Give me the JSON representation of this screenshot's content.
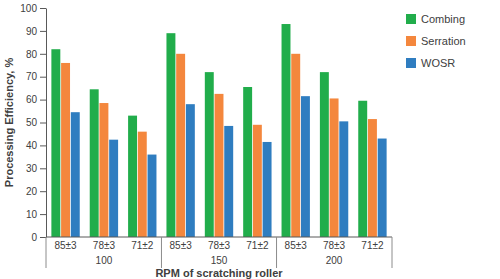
{
  "chart_data": {
    "type": "bar",
    "x_label": "RPM of scratching roller",
    "y_label": "Processing Efficiency, %",
    "categories": [
      "85±3",
      "78±3",
      "71±2",
      "85±3",
      "78±3",
      "71±2",
      "85±3",
      "78±3",
      "71±2"
    ],
    "groups": [
      "100",
      "150",
      "200"
    ],
    "series": [
      {
        "name": "Combing",
        "color": "#21ad4b",
        "values": [
          82,
          64.5,
          53,
          89,
          72,
          65.5,
          93,
          72,
          59.5
        ]
      },
      {
        "name": "Serration",
        "color": "#f4873d",
        "values": [
          76,
          58.5,
          46,
          80,
          62.5,
          49,
          80,
          60.5,
          51.5
        ]
      },
      {
        "name": "WOSR",
        "color": "#2f7dc0",
        "values": [
          54.5,
          42.5,
          36,
          58,
          48.5,
          41.5,
          61.5,
          50.5,
          43
        ]
      }
    ],
    "ylim": [
      0,
      100
    ],
    "yticks": [
      0,
      10,
      20,
      30,
      40,
      50,
      60,
      70,
      80,
      90,
      100
    ],
    "grid": false,
    "legend": "right"
  }
}
